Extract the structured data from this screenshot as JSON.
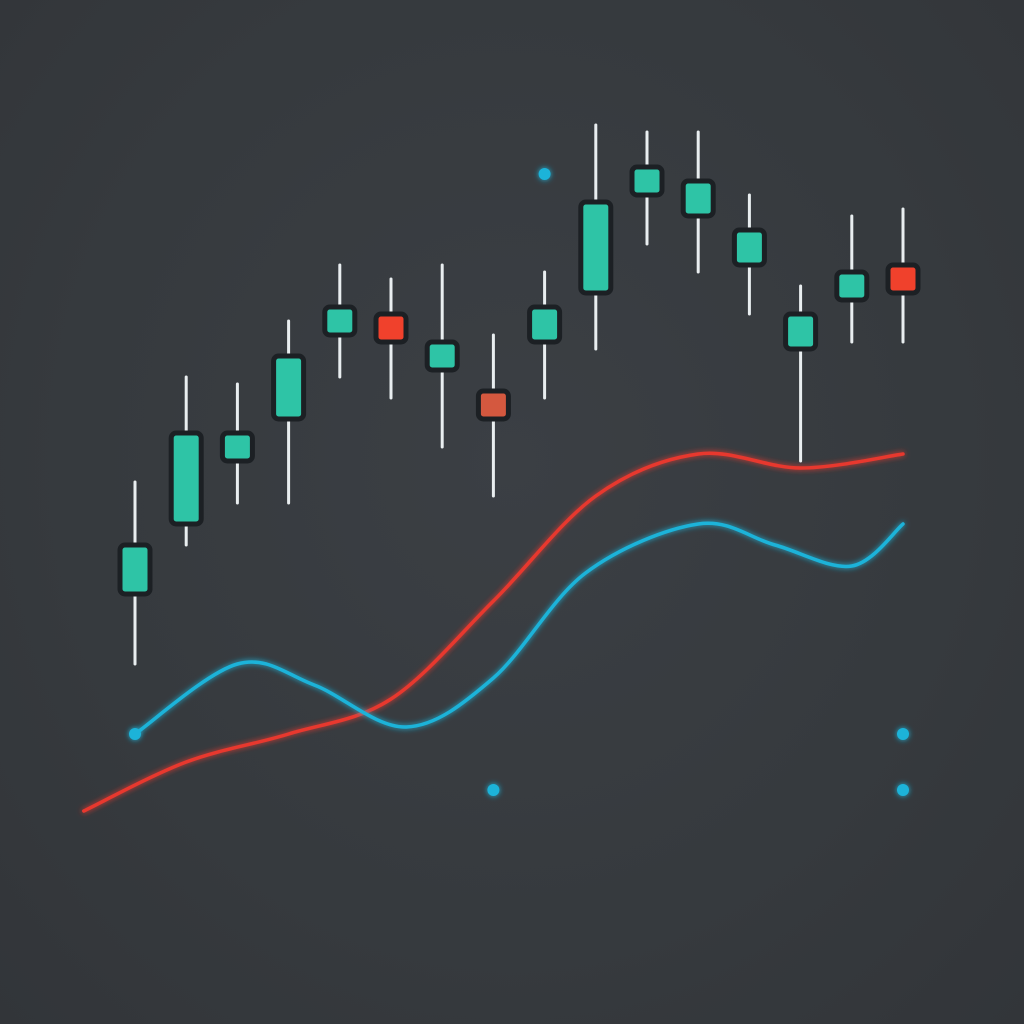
{
  "colors": {
    "background": "#373b3f",
    "bullish": "#2ec4a6",
    "bearish": "#f0412c",
    "bearish_muted": "#d4583f",
    "wick": "#e9eef0",
    "ma_fast": "#e8392f",
    "ma_slow": "#1cb3d9",
    "marker": "#1cb3d9"
  },
  "chart_data": {
    "type": "candlestick",
    "title": "",
    "xlabel": "",
    "ylabel": "",
    "ylim": [
      0,
      100
    ],
    "grid": false,
    "legend": "none",
    "candles": [
      {
        "x": 1,
        "open": 38,
        "close": 45,
        "high": 54,
        "low": 28,
        "direction": "up"
      },
      {
        "x": 2,
        "open": 48,
        "close": 61,
        "high": 69,
        "low": 45,
        "direction": "up"
      },
      {
        "x": 3,
        "open": 57,
        "close": 61,
        "high": 68,
        "low": 51,
        "direction": "up"
      },
      {
        "x": 4,
        "open": 63,
        "close": 72,
        "high": 77,
        "low": 51,
        "direction": "up"
      },
      {
        "x": 5,
        "open": 75,
        "close": 79,
        "high": 85,
        "low": 69,
        "direction": "up"
      },
      {
        "x": 6,
        "open": 74,
        "close": 78,
        "high": 83,
        "low": 66,
        "direction": "down",
        "tone": "bright"
      },
      {
        "x": 7,
        "open": 70,
        "close": 74,
        "high": 85,
        "low": 59,
        "direction": "up"
      },
      {
        "x": 8,
        "open": 63,
        "close": 67,
        "high": 75,
        "low": 52,
        "direction": "down",
        "tone": "muted"
      },
      {
        "x": 9,
        "open": 74,
        "close": 79,
        "high": 84,
        "low": 66,
        "direction": "up"
      },
      {
        "x": 10,
        "open": 81,
        "close": 94,
        "high": 105,
        "low": 73,
        "direction": "up"
      },
      {
        "x": 11,
        "open": 95,
        "close": 99,
        "high": 104,
        "low": 88,
        "direction": "up"
      },
      {
        "x": 12,
        "open": 92,
        "close": 97,
        "high": 104,
        "low": 84,
        "direction": "up"
      },
      {
        "x": 13,
        "open": 85,
        "close": 90,
        "high": 95,
        "low": 78,
        "direction": "up"
      },
      {
        "x": 14,
        "open": 73,
        "close": 78,
        "high": 82,
        "low": 57,
        "direction": "up"
      },
      {
        "x": 15,
        "open": 80,
        "close": 84,
        "high": 92,
        "low": 74,
        "direction": "up"
      },
      {
        "x": 16,
        "open": 81,
        "close": 85,
        "high": 93,
        "low": 74,
        "direction": "down",
        "tone": "bright"
      }
    ],
    "series": [
      {
        "type": "line",
        "color_key": "ma_fast",
        "points": [
          [
            0,
            7
          ],
          [
            2,
            14
          ],
          [
            4,
            18
          ],
          [
            6,
            23
          ],
          [
            8,
            37
          ],
          [
            10,
            52
          ],
          [
            12,
            58
          ],
          [
            14,
            56
          ],
          [
            16,
            58
          ]
        ]
      },
      {
        "type": "line",
        "color_key": "ma_slow",
        "points": [
          [
            1,
            18
          ],
          [
            3,
            28
          ],
          [
            4.5,
            25
          ],
          [
            6.3,
            19
          ],
          [
            8,
            26
          ],
          [
            9.8,
            41
          ],
          [
            12,
            48
          ],
          [
            13.5,
            45
          ],
          [
            15,
            42
          ],
          [
            16,
            48
          ]
        ]
      }
    ],
    "markers": [
      {
        "x": 1,
        "y": 18
      },
      {
        "x": 9,
        "y": 98
      },
      {
        "x": 8,
        "y": 10
      },
      {
        "x": 16,
        "y": 18
      },
      {
        "x": 16,
        "y": 10
      }
    ]
  }
}
